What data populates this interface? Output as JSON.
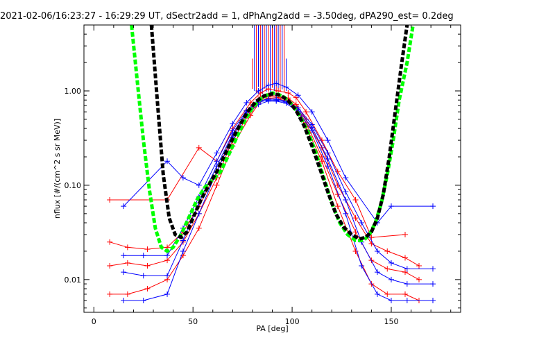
{
  "chart_data": {
    "type": "line",
    "title": "2021-02-06/16:23:27 - 16:29:29 UT, dSectr2add = 1, dPhAng2add = -3.50deg, dPA290_est=   0.2deg",
    "xlabel": "PA [deg]",
    "ylabel": "nflux [#/(cm^2 s sr MeV)]",
    "xlim": [
      -5,
      185
    ],
    "ylim": [
      0.0045,
      5.0
    ],
    "y_scale": "log",
    "x_ticks": [
      0,
      50,
      100,
      150
    ],
    "x_tick_labels": [
      "0",
      "50",
      "100",
      "150"
    ],
    "y_ticks": [
      0.01,
      0.1,
      1.0
    ],
    "y_tick_labels": [
      "0.01",
      "0.10",
      "1.00"
    ],
    "grid": false,
    "colors": {
      "red_series": "#ff0000",
      "blue_series": "#0000ff",
      "green_fit": "#00ff00",
      "black_fit": "#000000"
    },
    "series": [
      {
        "color_key": "red_series",
        "marker": "plus",
        "x": [
          8,
          17,
          27,
          37,
          45,
          53,
          62,
          70,
          79,
          84,
          88,
          93,
          98,
          102,
          107,
          115,
          123,
          132,
          140,
          148,
          157,
          164
        ],
        "y": [
          0.025,
          0.022,
          0.021,
          0.022,
          0.032,
          0.06,
          0.14,
          0.34,
          0.66,
          0.86,
          0.9,
          0.88,
          0.84,
          0.72,
          0.5,
          0.25,
          0.1,
          0.045,
          0.024,
          0.02,
          0.017,
          0.014
        ]
      },
      {
        "color_key": "red_series",
        "marker": "plus",
        "x": [
          8,
          17,
          27,
          37,
          45,
          53,
          62,
          70,
          79,
          84,
          88,
          93,
          98,
          102,
          107,
          115,
          123,
          132,
          140,
          148,
          157,
          164
        ],
        "y": [
          0.007,
          0.007,
          0.008,
          0.01,
          0.018,
          0.035,
          0.1,
          0.26,
          0.55,
          0.78,
          0.84,
          0.82,
          0.78,
          0.64,
          0.42,
          0.18,
          0.06,
          0.02,
          0.009,
          0.007,
          0.007,
          0.006
        ]
      },
      {
        "color_key": "red_series",
        "marker": "plus",
        "x": [
          8,
          17,
          27,
          37,
          45,
          53,
          62,
          70,
          79,
          84,
          88,
          93,
          98,
          102,
          107,
          115,
          123,
          132,
          140,
          148,
          157,
          164
        ],
        "y": [
          0.014,
          0.015,
          0.014,
          0.016,
          0.025,
          0.05,
          0.12,
          0.3,
          0.6,
          0.82,
          0.87,
          0.85,
          0.8,
          0.68,
          0.46,
          0.2,
          0.08,
          0.032,
          0.016,
          0.013,
          0.012,
          0.01
        ]
      },
      {
        "color_key": "red_series",
        "marker": "plus",
        "x": [
          8,
          37,
          53,
          62,
          70,
          79,
          84,
          88,
          93,
          98,
          102,
          107,
          115,
          123,
          132,
          140,
          157
        ],
        "y": [
          0.07,
          0.07,
          0.25,
          0.18,
          0.4,
          0.75,
          0.95,
          1.05,
          1.0,
          0.95,
          0.85,
          0.6,
          0.3,
          0.14,
          0.07,
          0.028,
          0.03
        ]
      },
      {
        "color_key": "blue_series",
        "marker": "plus",
        "x": [
          15,
          25,
          37,
          45,
          53,
          62,
          70,
          77,
          83,
          88,
          92,
          97,
          103,
          110,
          118,
          127,
          135,
          143,
          150,
          158,
          171
        ],
        "y": [
          0.018,
          0.018,
          0.018,
          0.035,
          0.075,
          0.18,
          0.38,
          0.62,
          0.78,
          0.82,
          0.82,
          0.78,
          0.66,
          0.44,
          0.22,
          0.085,
          0.04,
          0.02,
          0.015,
          0.013,
          0.013
        ]
      },
      {
        "color_key": "blue_series",
        "marker": "plus",
        "x": [
          15,
          25,
          37,
          45,
          53,
          62,
          70,
          77,
          83,
          88,
          92,
          97,
          103,
          110,
          118,
          127,
          135,
          143,
          150,
          158,
          171
        ],
        "y": [
          0.006,
          0.006,
          0.007,
          0.02,
          0.05,
          0.14,
          0.32,
          0.56,
          0.72,
          0.78,
          0.78,
          0.74,
          0.6,
          0.38,
          0.16,
          0.05,
          0.014,
          0.007,
          0.006,
          0.006,
          0.006
        ]
      },
      {
        "color_key": "blue_series",
        "marker": "plus",
        "x": [
          15,
          25,
          37,
          45,
          53,
          62,
          70,
          77,
          83,
          88,
          92,
          97,
          103,
          110,
          118,
          127,
          135,
          143,
          150,
          158,
          171
        ],
        "y": [
          0.012,
          0.011,
          0.011,
          0.026,
          0.065,
          0.16,
          0.35,
          0.6,
          0.76,
          0.8,
          0.8,
          0.76,
          0.63,
          0.41,
          0.19,
          0.07,
          0.025,
          0.012,
          0.01,
          0.009,
          0.009
        ]
      },
      {
        "color_key": "blue_series",
        "marker": "plus",
        "x": [
          15,
          37,
          45,
          53,
          62,
          70,
          77,
          83,
          88,
          92,
          97,
          103,
          110,
          118,
          127,
          143,
          150,
          171
        ],
        "y": [
          0.06,
          0.18,
          0.12,
          0.1,
          0.22,
          0.45,
          0.75,
          1.0,
          1.15,
          1.2,
          1.1,
          0.9,
          0.6,
          0.3,
          0.12,
          0.04,
          0.06,
          0.06
        ]
      },
      {
        "color_key": "green_fit",
        "marker": "thick-dashed",
        "x": [
          19,
          22,
          25,
          28,
          31,
          34,
          37,
          40,
          44,
          48,
          52,
          56,
          60,
          64,
          68,
          72,
          76,
          80,
          84,
          88,
          90,
          92,
          96,
          100,
          104,
          108,
          112,
          116,
          120,
          124,
          128,
          132,
          136,
          139,
          142,
          145,
          148,
          151,
          154,
          158,
          161
        ],
        "y": [
          5,
          1.2,
          0.3,
          0.09,
          0.035,
          0.022,
          0.02,
          0.022,
          0.03,
          0.046,
          0.07,
          0.095,
          0.115,
          0.14,
          0.21,
          0.32,
          0.48,
          0.66,
          0.82,
          0.92,
          0.95,
          0.94,
          0.86,
          0.72,
          0.54,
          0.37,
          0.22,
          0.12,
          0.065,
          0.04,
          0.03,
          0.026,
          0.026,
          0.03,
          0.04,
          0.065,
          0.13,
          0.3,
          0.8,
          2.0,
          5
        ]
      },
      {
        "color_key": "black_fit",
        "marker": "thick-dashed",
        "x": [
          29,
          32,
          35,
          38,
          41,
          44,
          47,
          50,
          54,
          58,
          62,
          66,
          70,
          74,
          78,
          82,
          86,
          90,
          94,
          98,
          102,
          106,
          110,
          114,
          118,
          122,
          126,
          130,
          134,
          137,
          140,
          143,
          146,
          149,
          152,
          155,
          158
        ],
        "y": [
          5,
          0.8,
          0.13,
          0.045,
          0.03,
          0.028,
          0.032,
          0.045,
          0.07,
          0.1,
          0.14,
          0.21,
          0.31,
          0.45,
          0.62,
          0.78,
          0.89,
          0.93,
          0.9,
          0.79,
          0.62,
          0.43,
          0.26,
          0.15,
          0.085,
          0.05,
          0.036,
          0.03,
          0.027,
          0.028,
          0.032,
          0.045,
          0.08,
          0.2,
          0.6,
          1.8,
          5
        ]
      }
    ],
    "spikes": {
      "color_keys": [
        "red_series",
        "blue_series"
      ],
      "x": [
        80,
        81,
        82,
        83,
        84,
        85,
        86,
        87,
        88,
        89,
        90,
        91,
        92,
        93,
        94,
        95,
        96,
        97
      ],
      "y_low": [
        1.05,
        1.0,
        0.95,
        1.1,
        1.0,
        0.92,
        1.05,
        0.98,
        1.0,
        0.95,
        1.08,
        1.0,
        0.96,
        1.02,
        0.99,
        1.04,
        0.97,
        1.0
      ],
      "y_high": [
        2.2,
        5,
        5,
        5,
        5,
        5,
        5,
        5,
        5,
        5,
        5,
        5,
        5,
        5,
        5,
        5,
        5,
        2.2
      ]
    }
  }
}
